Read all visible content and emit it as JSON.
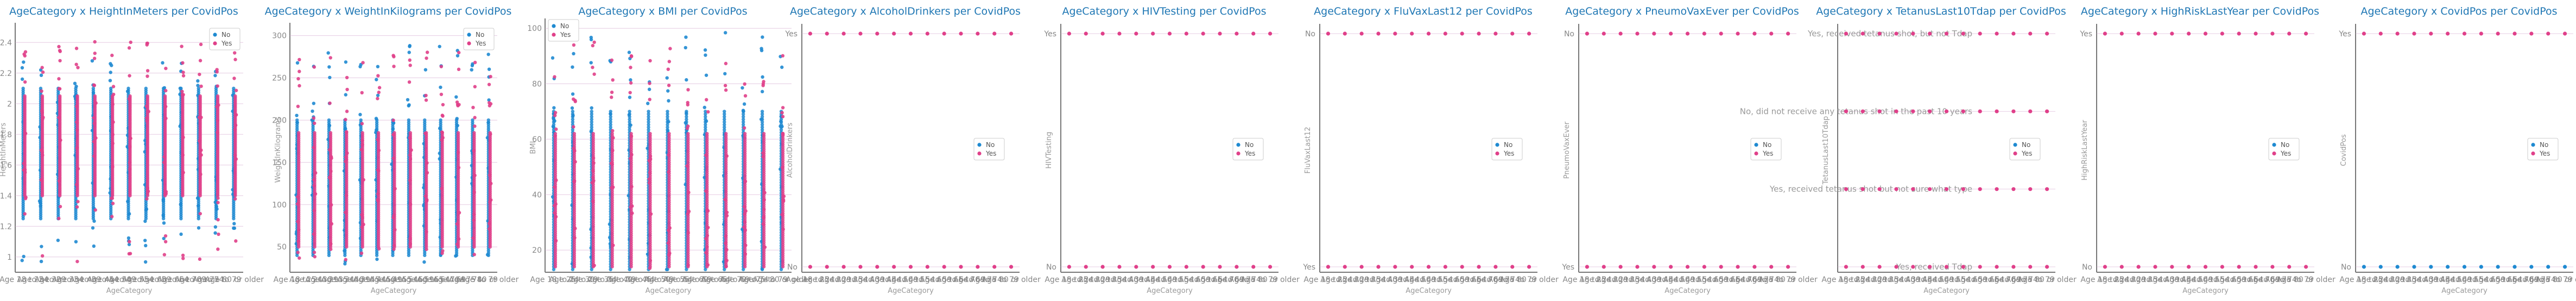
{
  "colors": {
    "No": "#1f8ad1",
    "Yes": "#e0408a",
    "title": "#1f77b4",
    "grid": "#d4a9cf",
    "axis": "#777777"
  },
  "x_categories": [
    "Age 18 to 24",
    "Age 25 to 29",
    "Age 30 to 34",
    "Age 35 to 39",
    "Age 40 to 44",
    "Age 45 to 49",
    "Age 50 to 54",
    "Age 55 to 59",
    "Age 60 to 64",
    "Age 65 to 69",
    "Age 70 to 74",
    "Age 75 to 79",
    "Age 80 or older"
  ],
  "chart_data": [
    {
      "type": "scatter",
      "title": "AgeCategory x HeightInMeters per CovidPos",
      "xlabel": "AgeCategory",
      "ylabel": "HeightInMeters",
      "y_kind": "numeric",
      "ylim": [
        0.9,
        2.5
      ],
      "yticks": [
        1.0,
        1.2,
        1.4,
        1.6,
        1.8,
        2.0,
        2.2,
        2.4
      ],
      "legend": {
        "position": "top-right",
        "entries": [
          "No",
          "Yes"
        ]
      },
      "series": [
        {
          "name": "No",
          "range": [
            0.95,
            2.28
          ],
          "dense": [
            1.25,
            2.1
          ]
        },
        {
          "name": "Yes",
          "range": [
            0.97,
            2.41
          ],
          "dense": [
            1.4,
            2.05
          ]
        }
      ]
    },
    {
      "type": "scatter",
      "title": "AgeCategory x WeightInKilograms per CovidPos",
      "xlabel": "AgeCategory",
      "ylabel": "WeightInKilograms",
      "y_kind": "numeric",
      "ylim": [
        20,
        310
      ],
      "yticks": [
        50,
        100,
        150,
        200,
        250,
        300
      ],
      "legend": {
        "position": "top-right",
        "entries": [
          "No",
          "Yes"
        ]
      },
      "series": [
        {
          "name": "No",
          "range": [
            30,
            292
          ],
          "dense": [
            40,
            200
          ]
        },
        {
          "name": "Yes",
          "range": [
            32,
            282
          ],
          "dense": [
            50,
            185
          ]
        }
      ]
    },
    {
      "type": "scatter",
      "title": "AgeCategory x BMI per CovidPos",
      "xlabel": "AgeCategory",
      "ylabel": "BMI",
      "y_kind": "numeric",
      "ylim": [
        12,
        102
      ],
      "yticks": [
        20,
        40,
        60,
        80,
        100
      ],
      "legend": {
        "position": "top-left",
        "entries": [
          "No",
          "Yes"
        ]
      },
      "series": [
        {
          "name": "No",
          "range": [
            12.5,
            99
          ],
          "dense": [
            13,
            70
          ]
        },
        {
          "name": "Yes",
          "range": [
            13,
            95
          ],
          "dense": [
            14,
            62
          ]
        }
      ]
    },
    {
      "type": "scatter",
      "title": "AgeCategory x AlcoholDrinkers per CovidPos",
      "xlabel": "AgeCategory",
      "ylabel": "AlcoholDrinkers",
      "y_kind": "categorical",
      "y_categories": [
        "No",
        "Yes"
      ],
      "legend": {
        "position": "center-right",
        "entries": [
          "No",
          "Yes"
        ]
      },
      "rows": [
        {
          "category": "Yes",
          "color_series": "Yes"
        },
        {
          "category": "No",
          "color_series": "Yes"
        }
      ]
    },
    {
      "type": "scatter",
      "title": "AgeCategory x HIVTesting per CovidPos",
      "xlabel": "AgeCategory",
      "ylabel": "HIVTesting",
      "y_kind": "categorical",
      "y_categories": [
        "No",
        "Yes"
      ],
      "legend": {
        "position": "center-right",
        "entries": [
          "No",
          "Yes"
        ]
      },
      "rows": [
        {
          "category": "Yes",
          "color_series": "Yes"
        },
        {
          "category": "No",
          "color_series": "Yes"
        }
      ]
    },
    {
      "type": "scatter",
      "title": "AgeCategory x FluVaxLast12 per CovidPos",
      "xlabel": "AgeCategory",
      "ylabel": "FluVaxLast12",
      "y_kind": "categorical",
      "y_categories": [
        "Yes",
        "No"
      ],
      "legend": {
        "position": "center-right",
        "entries": [
          "No",
          "Yes"
        ]
      },
      "rows": [
        {
          "category": "No",
          "color_series": "Yes"
        },
        {
          "category": "Yes",
          "color_series": "Yes"
        }
      ]
    },
    {
      "type": "scatter",
      "title": "AgeCategory x PneumoVaxEver per CovidPos",
      "xlabel": "AgeCategory",
      "ylabel": "PneumoVaxEver",
      "y_kind": "categorical",
      "y_categories": [
        "Yes",
        "No"
      ],
      "legend": {
        "position": "center-right",
        "entries": [
          "No",
          "Yes"
        ]
      },
      "rows": [
        {
          "category": "No",
          "color_series": "Yes"
        },
        {
          "category": "Yes",
          "color_series": "Yes"
        }
      ]
    },
    {
      "type": "scatter",
      "title": "AgeCategory x TetanusLast10Tdap per CovidPos",
      "xlabel": "AgeCategory",
      "ylabel": "TetanusLast10Tdap",
      "y_kind": "categorical_annotated",
      "y_categories": [
        "Yes, received Tdap",
        "Yes, received tetanus shot but not sure what type",
        "No, did not receive any tetanus shot in the past 10 years",
        "Yes, received tetanus shot, but not Tdap"
      ],
      "legend": {
        "position": "center-right",
        "entries": [
          "No",
          "Yes"
        ]
      },
      "rows": [
        {
          "category": "Yes, received tetanus shot, but not Tdap",
          "color_series": "Yes"
        },
        {
          "category": "No, did not receive any tetanus shot in the past 10 years",
          "color_series": "Yes"
        },
        {
          "category": "Yes, received tetanus shot but not sure what type",
          "color_series": "Yes"
        },
        {
          "category": "Yes, received Tdap",
          "color_series": "Yes"
        }
      ]
    },
    {
      "type": "scatter",
      "title": "AgeCategory x HighRiskLastYear per CovidPos",
      "xlabel": "AgeCategory",
      "ylabel": "HighRiskLastYear",
      "y_kind": "categorical",
      "y_categories": [
        "No",
        "Yes"
      ],
      "legend": {
        "position": "center-right",
        "entries": [
          "No",
          "Yes"
        ]
      },
      "rows": [
        {
          "category": "Yes",
          "color_series": "Yes"
        },
        {
          "category": "No",
          "color_series": "Yes"
        }
      ]
    },
    {
      "type": "scatter",
      "title": "AgeCategory x CovidPos per CovidPos",
      "xlabel": "AgeCategory",
      "ylabel": "CovidPos",
      "y_kind": "categorical",
      "y_categories": [
        "No",
        "Yes"
      ],
      "legend": {
        "position": "center-right",
        "entries": [
          "No",
          "Yes"
        ]
      },
      "rows": [
        {
          "category": "Yes",
          "color_series": "Yes"
        },
        {
          "category": "No",
          "color_series": "No"
        }
      ]
    }
  ]
}
